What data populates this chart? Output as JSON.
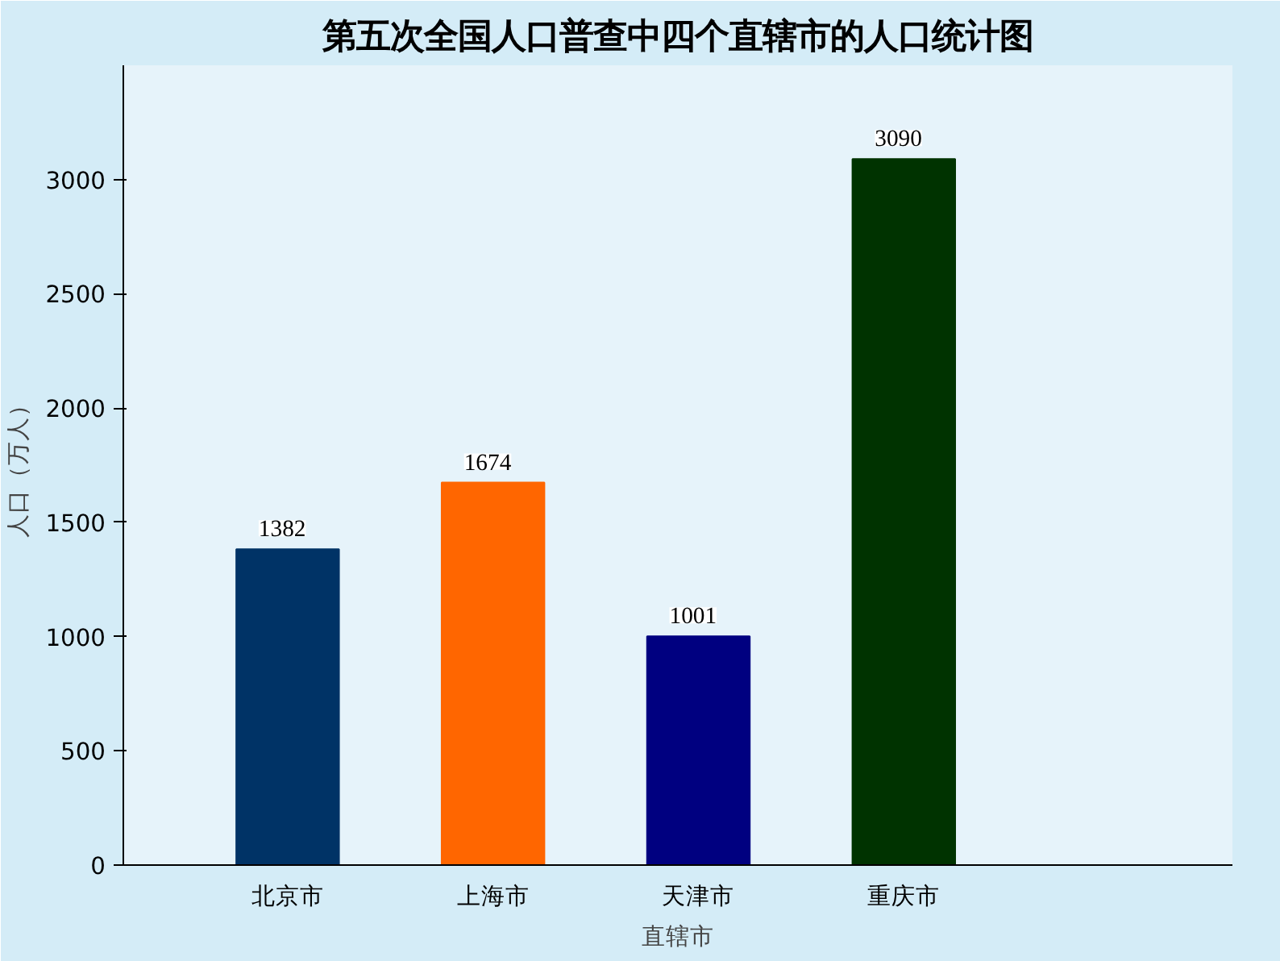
{
  "chart_data": {
    "type": "bar",
    "title": "第五次全国人口普查中四个直辖市的人口统计图",
    "xlabel": "直辖市",
    "ylabel": "人口（万人）",
    "categories": [
      "北京市",
      "上海市",
      "天津市",
      "重庆市"
    ],
    "values": [
      1382,
      1674,
      1001,
      3090
    ],
    "colors": [
      "#003366",
      "#ff6600",
      "#000080",
      "#003300"
    ],
    "ylim": [
      0,
      3500
    ],
    "yticks": [
      0,
      500,
      1000,
      1500,
      2000,
      2500,
      3000
    ],
    "data_labels": true,
    "grid": false
  }
}
